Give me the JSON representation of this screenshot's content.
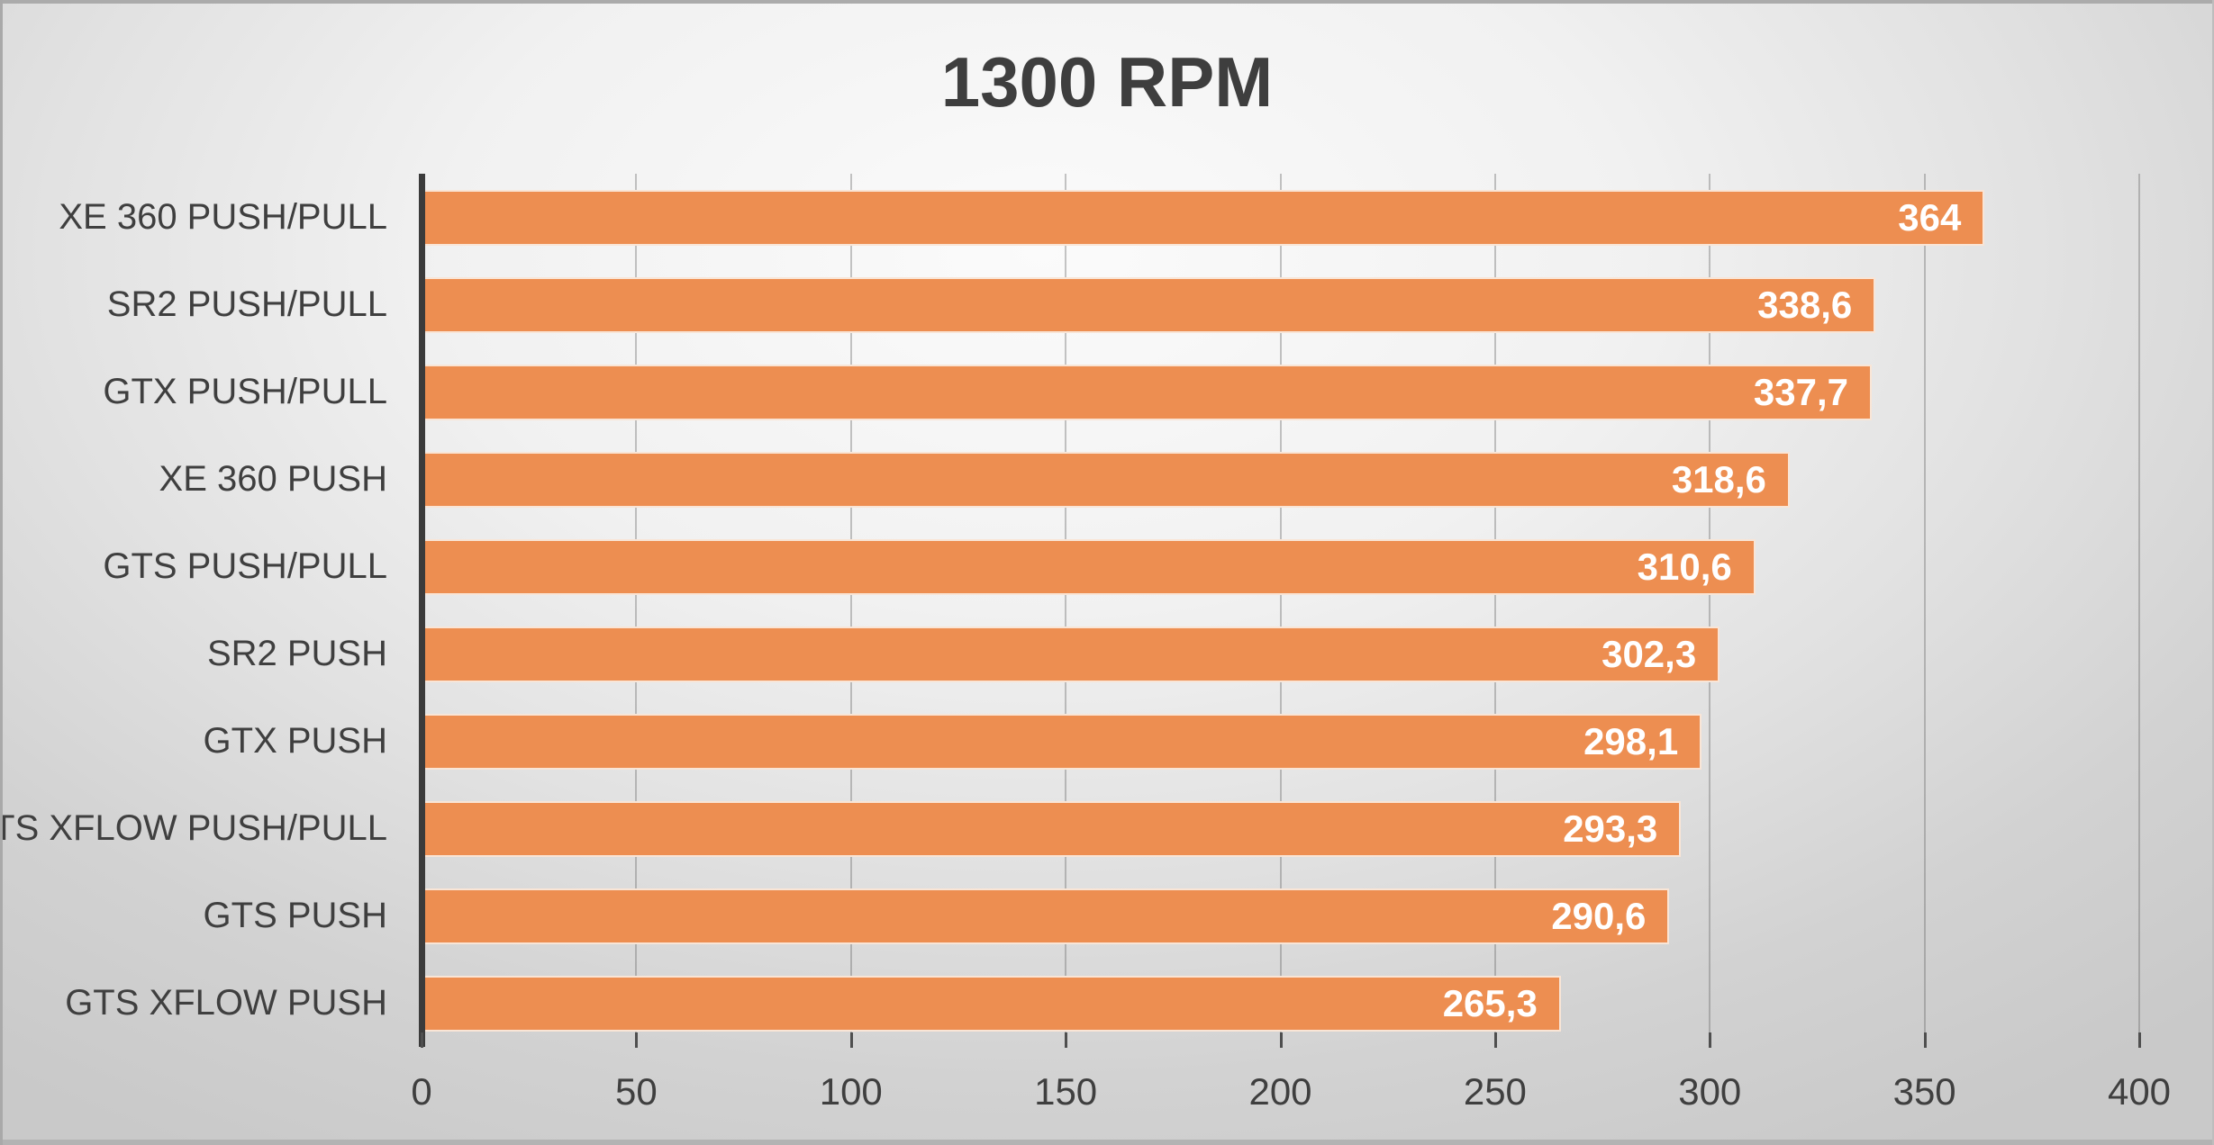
{
  "chart_data": {
    "type": "bar",
    "orientation": "horizontal",
    "title": "1300 RPM",
    "categories": [
      "XE 360 PUSH/PULL",
      "SR2 PUSH/PULL",
      "GTX PUSH/PULL",
      "XE 360 PUSH",
      "GTS PUSH/PULL",
      "SR2 PUSH",
      "GTX PUSH",
      "GTS XFLOW PUSH/PULL",
      "GTS PUSH",
      "GTS XFLOW PUSH"
    ],
    "values": [
      364,
      338.6,
      337.7,
      318.6,
      310.6,
      302.3,
      298.1,
      293.3,
      290.6,
      265.3
    ],
    "value_labels": [
      "364",
      "338,6",
      "337,7",
      "318,6",
      "310,6",
      "302,3",
      "298,1",
      "293,3",
      "290,6",
      "265,3"
    ],
    "xlabel": "",
    "ylabel": "",
    "xlim": [
      0,
      400
    ],
    "x_ticks": [
      0,
      50,
      100,
      150,
      200,
      250,
      300,
      350,
      400
    ],
    "grid": true,
    "legend": false,
    "colors": {
      "bar_fill": "#ed8e51",
      "bar_outline": "#faeee4",
      "value_label": "#ffffff",
      "category_label": "#3f3f3f",
      "tick_label": "#3f3f3f",
      "title": "#3e3e3e",
      "gridline": "#696969",
      "axis_line": "#3b3b3b"
    }
  }
}
